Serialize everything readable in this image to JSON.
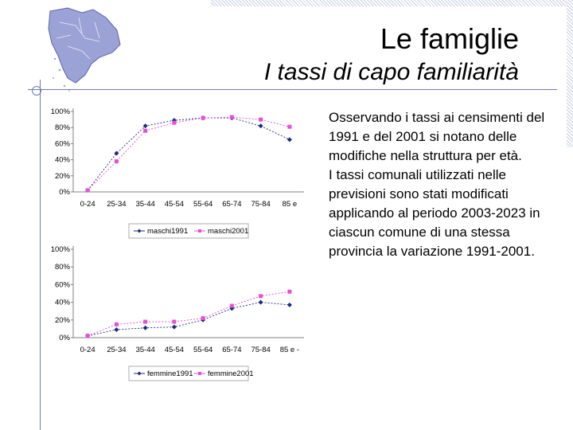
{
  "header": {
    "title": "Le famiglie",
    "subtitle": "I tassi di capo familiarità"
  },
  "body_text": {
    "paragraph1": "Osservando i tassi ai censimenti del 1991 e del 2001 si notano delle modifiche nella struttura per età.",
    "paragraph2": "I tassi comunali utilizzati nelle previsioni sono stati modificati applicando al periodo 2003-2023 in ciascun comune di una stessa provincia la variazione 1991-2001."
  },
  "colors": {
    "accent_line": "#6e7ab8",
    "series_1991": "#1c2a7a",
    "series_2001": "#e64fd6"
  },
  "chart_data": [
    {
      "type": "line",
      "categories": [
        "0-24",
        "25-34",
        "35-44",
        "45-54",
        "55-64",
        "65-74",
        "75-84",
        "85 e"
      ],
      "yticks": [
        "0%",
        "20%",
        "40%",
        "60%",
        "80%",
        "100%"
      ],
      "ylim": [
        0,
        100
      ],
      "series": [
        {
          "name": "maschi1991",
          "values": [
            2,
            48,
            82,
            89,
            92,
            92,
            82,
            65
          ]
        },
        {
          "name": "maschi2001",
          "values": [
            2,
            38,
            76,
            86,
            92,
            93,
            90,
            81
          ]
        }
      ],
      "legend": "bottom"
    },
    {
      "type": "line",
      "categories": [
        "0-24",
        "25-34",
        "35-44",
        "45-54",
        "55-64",
        "65-74",
        "75-84",
        "85 e -"
      ],
      "yticks": [
        "0%",
        "20%",
        "40%",
        "60%",
        "80%",
        "100%"
      ],
      "ylim": [
        0,
        100
      ],
      "series": [
        {
          "name": "femmine1991",
          "values": [
            2,
            9,
            11,
            12,
            20,
            33,
            40,
            37
          ]
        },
        {
          "name": "femmine2001",
          "values": [
            2,
            15,
            18,
            18,
            22,
            36,
            47,
            52
          ]
        }
      ],
      "legend": "bottom"
    }
  ]
}
